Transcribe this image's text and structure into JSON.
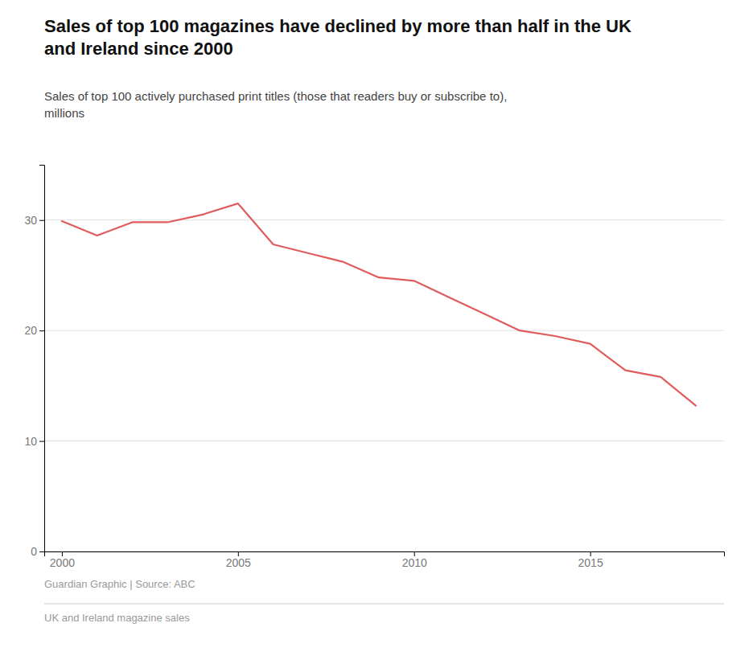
{
  "chart_data": {
    "type": "line",
    "title": "Sales of top 100 magazines have declined by more than half in the UK\nand Ireland since 2000",
    "subtitle": "Sales of top 100 actively purchased print titles (those that readers buy or subscribe to),\nmillions",
    "annotations": [
      "Guardian Graphic | Source: ABC",
      "UK and Ireland magazine sales"
    ],
    "x": [
      2000,
      2001,
      2002,
      2003,
      2004,
      2005,
      2006,
      2007,
      2008,
      2009,
      2010,
      2011,
      2012,
      2013,
      2014,
      2015,
      2016,
      2017,
      2018
    ],
    "values": [
      29.9,
      28.6,
      29.8,
      29.8,
      30.5,
      31.5,
      27.8,
      27.0,
      26.2,
      24.8,
      24.5,
      23.0,
      21.5,
      20.0,
      19.5,
      18.8,
      16.4,
      15.8,
      13.2
    ],
    "color": "#e05c5c",
    "xlim": [
      1999.5,
      2018.8
    ],
    "xticks": [
      2000,
      2005,
      2010,
      2015
    ],
    "ylim": [
      0,
      35
    ],
    "yticks": [
      0,
      10,
      20,
      30
    ],
    "grid": true
  }
}
